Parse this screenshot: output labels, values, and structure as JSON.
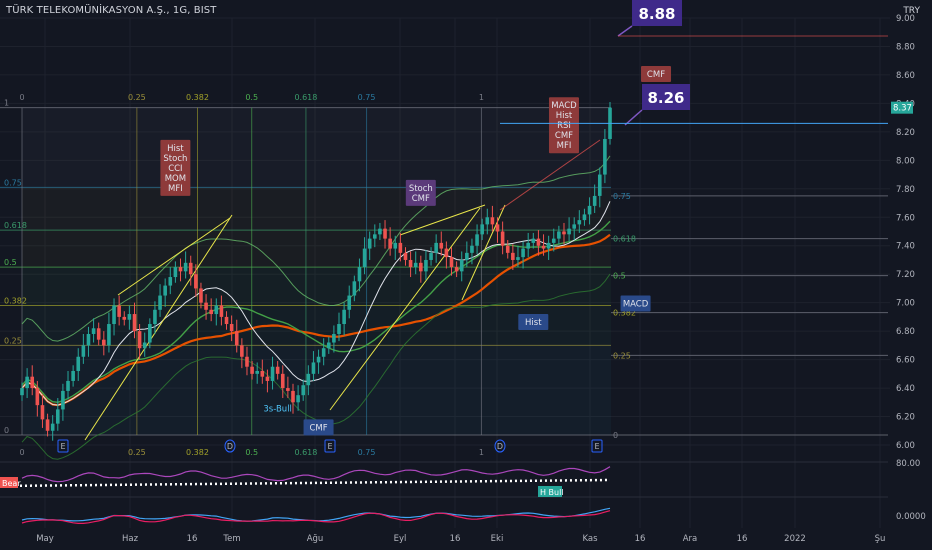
{
  "title": "TÜRK TELEKOMÜNİKASYON A.Ş., 1G, BIST",
  "currency": "TRY",
  "colors": {
    "up": "#26a69a",
    "down": "#ef5350",
    "bg": "#131722",
    "grid": "#1e222d",
    "axis_text": "#b2b5be"
  },
  "chart_data": [
    {
      "type": "candlestick",
      "ylim": [
        6.0,
        9.0
      ],
      "y_ticks": [
        "6.00",
        "6.20",
        "6.40",
        "6.60",
        "6.80",
        "7.00",
        "7.20",
        "7.40",
        "7.60",
        "7.80",
        "8.00",
        "8.20",
        "8.40",
        "8.60",
        "8.80",
        "9.00"
      ],
      "x_ticks": [
        "May",
        "Haz",
        "16",
        "Tem",
        "Ağu",
        "Eyl",
        "16",
        "Eki",
        "Kas",
        "16",
        "Ara",
        "16",
        "2022",
        "Şu"
      ],
      "last_price": "8.37",
      "targets": [
        "8.88",
        "8.26"
      ],
      "fib_top": [
        {
          "label": "0",
          "level": 0
        },
        {
          "label": "0.25",
          "level": 0.25
        },
        {
          "label": "0.382",
          "level": 0.382
        },
        {
          "label": "0.5",
          "level": 0.5
        },
        {
          "label": "0.618",
          "level": 0.618
        },
        {
          "label": "0.75",
          "level": 0.75
        },
        {
          "label": "1",
          "level": 1
        }
      ],
      "fib_bottom": [
        "0",
        "0.25",
        "0.382",
        "0.5",
        "0.618",
        "0.75",
        "1"
      ],
      "fib_right": [
        {
          "label": "0.75",
          "value": 7.75
        },
        {
          "label": "0.618",
          "value": 7.45
        },
        {
          "label": "0.5",
          "value": 7.19
        },
        {
          "label": "0.382",
          "value": 6.93
        },
        {
          "label": "0.25",
          "value": 6.63
        },
        {
          "label": "0",
          "value": 6.07
        }
      ],
      "fib_left": [
        {
          "label": "1",
          "value": 8.37
        },
        {
          "label": "0.75",
          "value": 7.81
        },
        {
          "label": "0.618",
          "value": 7.51
        },
        {
          "label": "0.5",
          "value": 7.25
        },
        {
          "label": "0.382",
          "value": 6.98
        },
        {
          "label": "0.25",
          "value": 6.7
        },
        {
          "label": "0",
          "value": 6.07
        }
      ],
      "closes": [
        6.4,
        6.48,
        6.4,
        6.28,
        6.18,
        6.1,
        6.15,
        6.25,
        6.38,
        6.45,
        6.52,
        6.62,
        6.7,
        6.78,
        6.82,
        6.74,
        6.7,
        6.85,
        6.98,
        6.9,
        6.88,
        6.92,
        6.8,
        6.68,
        6.72,
        6.85,
        6.95,
        7.05,
        7.12,
        7.18,
        7.25,
        7.22,
        7.28,
        7.2,
        7.1,
        7.0,
        6.95,
        6.92,
        6.98,
        6.9,
        6.85,
        6.8,
        6.7,
        6.62,
        6.55,
        6.5,
        6.52,
        6.48,
        6.45,
        6.55,
        6.5,
        6.4,
        6.38,
        6.3,
        6.35,
        6.42,
        6.5,
        6.58,
        6.62,
        6.68,
        6.72,
        6.78,
        6.85,
        6.95,
        7.05,
        7.15,
        7.25,
        7.38,
        7.45,
        7.48,
        7.52,
        7.45,
        7.38,
        7.42,
        7.35,
        7.3,
        7.25,
        7.28,
        7.22,
        7.3,
        7.35,
        7.42,
        7.38,
        7.32,
        7.25,
        7.22,
        7.3,
        7.35,
        7.4,
        7.48,
        7.55,
        7.6,
        7.55,
        7.5,
        7.4,
        7.35,
        7.3,
        7.32,
        7.38,
        7.42,
        7.45,
        7.4,
        7.38,
        7.42,
        7.45,
        7.5,
        7.48,
        7.52,
        7.55,
        7.58,
        7.62,
        7.68,
        7.75,
        7.9,
        8.15,
        8.37
      ],
      "labels": [
        {
          "text": [
            "Hist",
            "Stoch",
            "CCI",
            "MOM",
            "MFI"
          ],
          "kind": "sell",
          "value": 7.75,
          "idx": 30
        },
        {
          "text": [
            "Stoch",
            "CMF"
          ],
          "kind": "sellp",
          "value": 7.68,
          "idx": 78
        },
        {
          "text": [
            "MACD",
            "Hist",
            "RSI",
            "CMF",
            "MFI"
          ],
          "kind": "sell",
          "value": 8.05,
          "idx": 106
        },
        {
          "text": [
            "CMF"
          ],
          "kind": "sell",
          "value": 8.55,
          "idx": 124
        },
        {
          "text": [
            "Hist"
          ],
          "kind": "buy",
          "value": 6.92,
          "idx": 100
        },
        {
          "text": [
            "MACD"
          ],
          "kind": "buy",
          "value": 7.05,
          "idx": 120
        },
        {
          "text": [
            "CMF"
          ],
          "kind": "buy",
          "value": 6.18,
          "idx": 58
        },
        {
          "text": [
            "3s-Bull"
          ],
          "kind": "plain",
          "value": 6.2,
          "idx": 50
        }
      ],
      "event_markers": [
        "E",
        "D",
        "E",
        "D",
        "E"
      ],
      "osc_labels": {
        "bear": "Bear",
        "bull": "H Bull",
        "top_value": "80.00",
        "bottom_value": "0.0000"
      }
    }
  ]
}
